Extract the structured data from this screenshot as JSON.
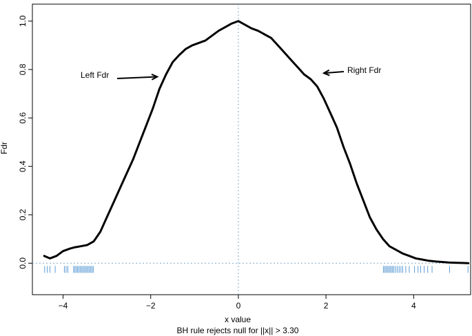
{
  "chart_data": {
    "type": "line",
    "title": "",
    "xlabel": "x value",
    "ylabel": "Fdr",
    "subtitle": "BH rule rejects null for ||x|| > 3.30",
    "xlim": [
      -4.7,
      5.3
    ],
    "ylim": [
      -0.13,
      1.07
    ],
    "x_ticks": [
      -4,
      -2,
      0,
      2,
      4
    ],
    "y_ticks": [
      0.0,
      0.2,
      0.4,
      0.6,
      0.8,
      1.0
    ],
    "y_tick_labels": [
      "0.0",
      "0.2",
      "0.4",
      "0.6",
      "0.8",
      "1.0"
    ],
    "x_tick_labels": [
      "−4",
      "−2",
      "0",
      "2",
      "4"
    ],
    "reference_lines": {
      "horizontal_y": 0.0,
      "vertical_x": 0.0
    },
    "series": [
      {
        "x": [
          -4.43,
          -4.3,
          -4.15,
          -4.0,
          -3.85,
          -3.75,
          -3.6,
          -3.45,
          -3.3,
          -3.15,
          -3.0,
          -2.85,
          -2.7,
          -2.55,
          -2.4,
          -2.25,
          -2.1,
          -1.95,
          -1.8,
          -1.65,
          -1.5,
          -1.35,
          -1.2,
          -1.05,
          -0.9,
          -0.75,
          -0.6,
          -0.45,
          -0.3,
          -0.15,
          0.0,
          0.15,
          0.3,
          0.45,
          0.6,
          0.75,
          0.9,
          1.05,
          1.2,
          1.35,
          1.5,
          1.65,
          1.8,
          1.95,
          2.1,
          2.25,
          2.4,
          2.55,
          2.7,
          2.85,
          3.0,
          3.15,
          3.3,
          3.45,
          3.6,
          3.75,
          3.9,
          4.05,
          4.2,
          4.35,
          4.5,
          4.65,
          4.8,
          4.95,
          5.1,
          5.25
        ],
        "y": [
          0.03,
          0.02,
          0.03,
          0.05,
          0.06,
          0.065,
          0.07,
          0.075,
          0.09,
          0.13,
          0.19,
          0.25,
          0.31,
          0.37,
          0.43,
          0.5,
          0.57,
          0.64,
          0.72,
          0.78,
          0.83,
          0.86,
          0.885,
          0.9,
          0.91,
          0.92,
          0.94,
          0.96,
          0.975,
          0.99,
          1.0,
          0.985,
          0.97,
          0.96,
          0.945,
          0.93,
          0.9,
          0.87,
          0.84,
          0.81,
          0.78,
          0.76,
          0.73,
          0.68,
          0.62,
          0.56,
          0.48,
          0.41,
          0.33,
          0.26,
          0.19,
          0.14,
          0.1,
          0.07,
          0.055,
          0.04,
          0.03,
          0.02,
          0.015,
          0.01,
          0.007,
          0.005,
          0.003,
          0.002,
          0.001,
          0.0
        ]
      }
    ],
    "rug_x": [
      -4.42,
      -4.36,
      -4.3,
      -4.18,
      -3.97,
      -3.93,
      -3.89,
      -3.76,
      -3.73,
      -3.7,
      -3.67,
      -3.64,
      -3.61,
      -3.58,
      -3.55,
      -3.52,
      -3.49,
      -3.46,
      -3.43,
      -3.4,
      -3.37,
      -3.34,
      -3.31,
      3.31,
      3.34,
      3.37,
      3.4,
      3.43,
      3.46,
      3.49,
      3.52,
      3.55,
      3.59,
      3.63,
      3.67,
      3.71,
      3.75,
      3.82,
      3.9,
      4.02,
      4.1,
      4.16,
      4.24,
      4.32,
      4.42,
      4.82,
      5.24
    ],
    "annotations": [
      {
        "text": "Left Fdr",
        "arrow_to": [
          -1.85,
          0.77
        ]
      },
      {
        "text": "Right Fdr",
        "arrow_to": [
          1.95,
          0.785
        ]
      }
    ],
    "colors": {
      "line": "#000000",
      "rug": "#5b9bd5",
      "reference": "#7fa7c9",
      "axis": "#000000"
    }
  }
}
